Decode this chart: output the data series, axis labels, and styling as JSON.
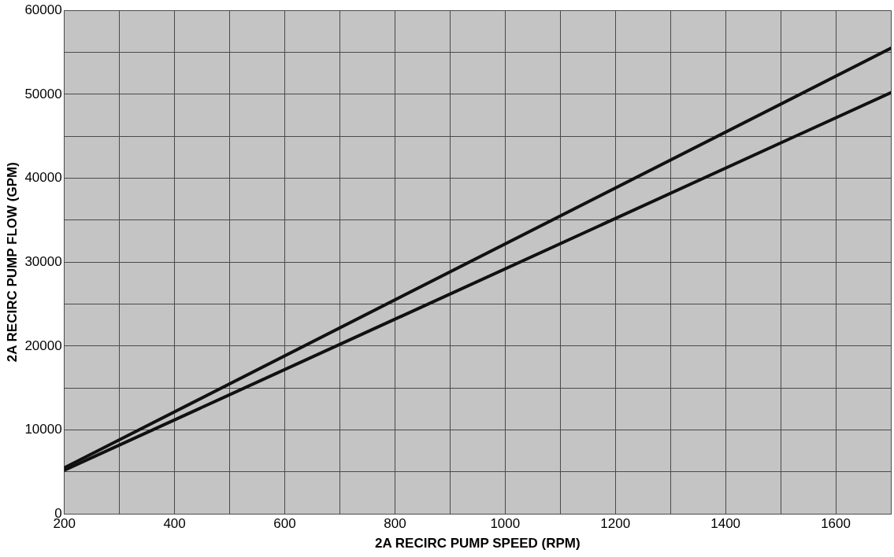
{
  "chart_data": {
    "type": "line",
    "xlabel": "2A RECIRC PUMP SPEED (RPM)",
    "ylabel": "2A RECIRC PUMP FLOW (GPM)",
    "x": [
      200,
      1700
    ],
    "series": [
      {
        "color": "#111111",
        "values": [
          5500,
          55500
        ]
      },
      {
        "color": "#111111",
        "values": [
          5200,
          50200
        ]
      }
    ],
    "xlim": [
      200,
      1700
    ],
    "xticks": [
      200,
      {
        "value": 300,
        "label": null
      },
      400,
      {
        "value": 500,
        "label": null
      },
      600,
      {
        "value": 700,
        "label": null
      },
      800,
      {
        "value": 900,
        "label": null
      },
      1000,
      {
        "value": 1100,
        "label": null
      },
      1200,
      {
        "value": 1300,
        "label": null
      },
      1400,
      {
        "value": 1500,
        "label": null
      },
      1600,
      {
        "value": 1700,
        "label": null
      }
    ],
    "ylim": [
      0,
      60000
    ],
    "yticks": [
      0,
      {
        "value": 5000,
        "label": null
      },
      10000,
      {
        "value": 15000,
        "label": null
      },
      20000,
      {
        "value": 25000,
        "label": null
      },
      30000,
      {
        "value": 35000,
        "label": null
      },
      40000,
      {
        "value": 45000,
        "label": null
      },
      50000,
      {
        "value": 55000,
        "label": null
      },
      60000
    ],
    "grid": true,
    "legend": false,
    "marker": "none",
    "line_style": "solid"
  }
}
